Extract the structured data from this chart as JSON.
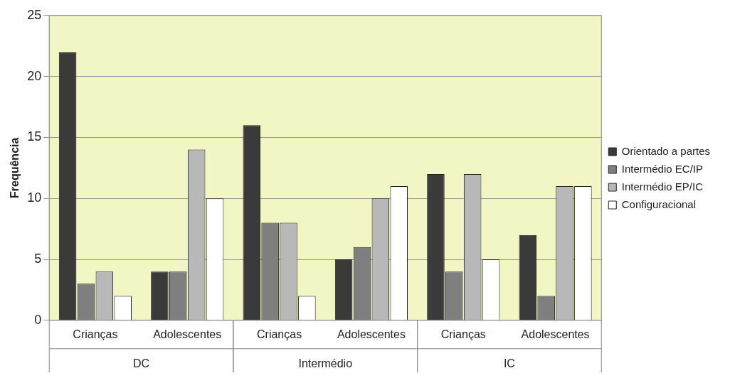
{
  "chart_data": {
    "type": "bar",
    "ylabel": "Frequência",
    "categories": [
      "Crianças",
      "Adolescentes",
      "Crianças",
      "Adolescentes",
      "Crianças",
      "Adolescentes"
    ],
    "series": [
      {
        "name": "Orientado a partes",
        "color": "#3a3a3a",
        "values": [
          22,
          4,
          16,
          5,
          12,
          7
        ]
      },
      {
        "name": "Intermédio EC/IP",
        "color": "#7f7f7f",
        "values": [
          3,
          4,
          8,
          6,
          4,
          2
        ]
      },
      {
        "name": "Intermédio EP/IC",
        "color": "#b8b8b8",
        "values": [
          4,
          14,
          8,
          10,
          12,
          11
        ]
      },
      {
        "name": "Configuracional",
        "color": "#ffffff",
        "values": [
          2,
          10,
          2,
          11,
          5,
          11
        ]
      }
    ],
    "ylim": [
      0,
      25
    ],
    "yticks": [
      0,
      5,
      10,
      15,
      20,
      25
    ],
    "grid": "y",
    "legend": "right",
    "annotations": [
      "DC",
      "Intermédio",
      "IC"
    ]
  }
}
